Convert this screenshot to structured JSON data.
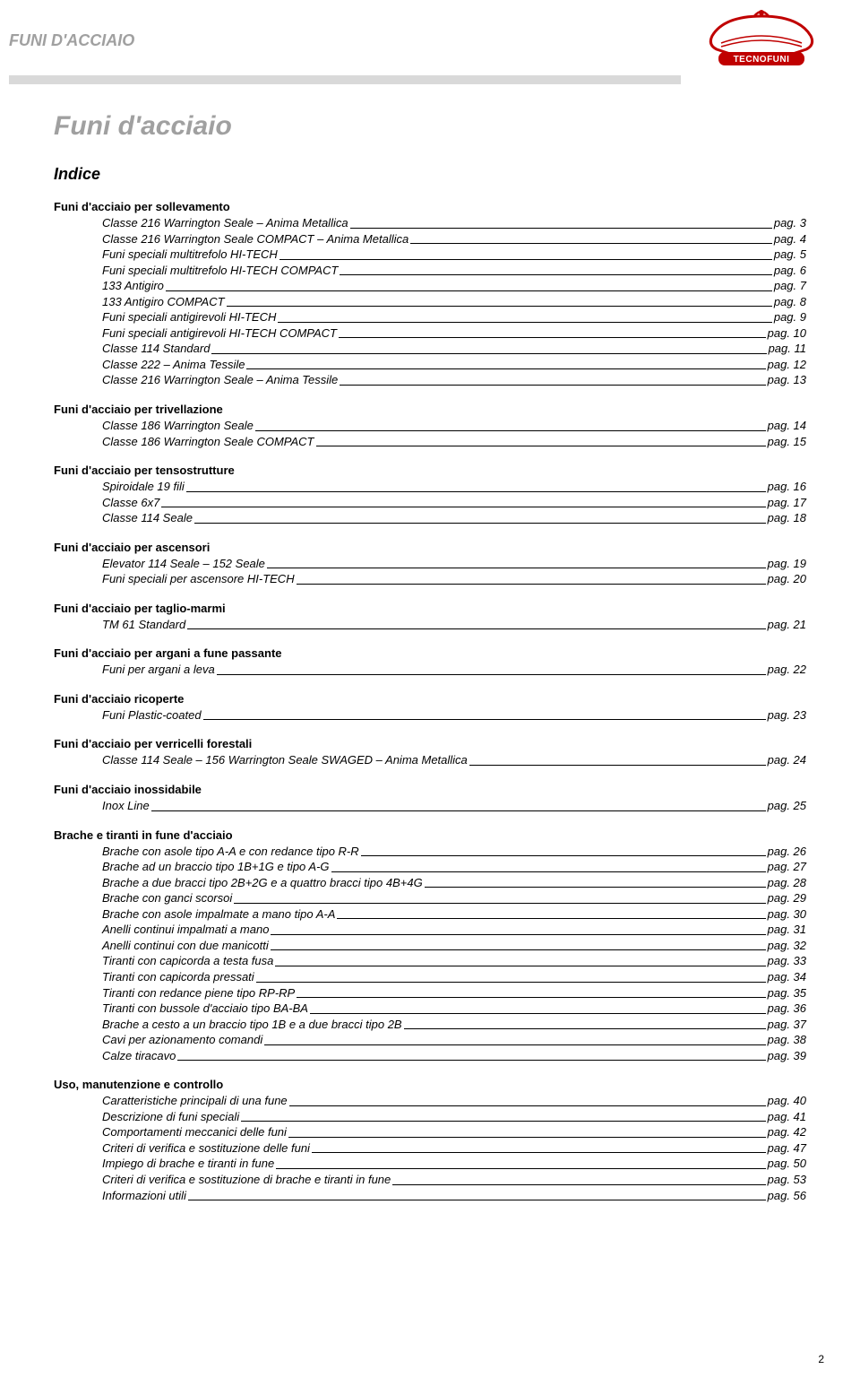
{
  "header": {
    "title": "FUNI D'ACCIAIO",
    "logo_name": "TECNOFUNI",
    "logo_color": "#c00000",
    "logo_fill": "#ffffff"
  },
  "main_title": "Funi d'acciaio",
  "index_title": "Indice",
  "footer_page": "2",
  "sections": [
    {
      "title": "Funi d'acciaio per sollevamento",
      "items": [
        {
          "label": "Classe 216 Warrington Seale – Anima Metallica",
          "page": "pag. 3"
        },
        {
          "label": "Classe 216 Warrington Seale COMPACT – Anima Metallica",
          "page": "pag. 4"
        },
        {
          "label": "Funi speciali multitrefolo HI-TECH",
          "page": "pag. 5"
        },
        {
          "label": "Funi speciali multitrefolo HI-TECH COMPACT",
          "page": "pag. 6"
        },
        {
          "label": "133 Antigiro",
          "page": "pag. 7"
        },
        {
          "label": "133 Antigiro COMPACT",
          "page": "pag. 8"
        },
        {
          "label": "Funi speciali antigirevoli HI-TECH",
          "page": "pag. 9"
        },
        {
          "label": "Funi speciali antigirevoli HI-TECH COMPACT",
          "page": "pag. 10"
        },
        {
          "label": "Classe 114 Standard",
          "page": "pag. 11"
        },
        {
          "label": "Classe 222 – Anima Tessile",
          "page": "pag. 12"
        },
        {
          "label": "Classe 216 Warrington Seale – Anima Tessile",
          "page": "pag. 13"
        }
      ]
    },
    {
      "title": "Funi d'acciaio per trivellazione",
      "items": [
        {
          "label": "Classe 186 Warrington Seale",
          "page": "pag. 14"
        },
        {
          "label": "Classe 186 Warrington Seale COMPACT",
          "page": "pag. 15"
        }
      ]
    },
    {
      "title": "Funi d'acciaio per tensostrutture",
      "items": [
        {
          "label": "Spiroidale 19 fili",
          "page": "pag. 16"
        },
        {
          "label": "Classe 6x7",
          "page": "pag. 17"
        },
        {
          "label": "Classe 114 Seale",
          "page": "pag. 18"
        }
      ]
    },
    {
      "title": "Funi d'acciaio per ascensori",
      "items": [
        {
          "label": "Elevator 114 Seale – 152 Seale",
          "page": "pag. 19"
        },
        {
          "label": "Funi speciali per ascensore HI-TECH",
          "page": "pag. 20"
        }
      ]
    },
    {
      "title": "Funi d'acciaio per taglio-marmi",
      "items": [
        {
          "label": "TM 61 Standard",
          "page": "pag. 21"
        }
      ]
    },
    {
      "title": "Funi d'acciaio per argani a fune passante",
      "items": [
        {
          "label": "Funi per argani a leva",
          "page": "pag. 22"
        }
      ]
    },
    {
      "title": "Funi d'acciaio ricoperte",
      "items": [
        {
          "label": "Funi Plastic-coated",
          "page": "pag. 23"
        }
      ]
    },
    {
      "title": "Funi d'acciaio per verricelli forestali",
      "items": [
        {
          "label": "Classe 114 Seale – 156 Warrington Seale SWAGED – Anima Metallica",
          "page": "pag. 24"
        }
      ]
    },
    {
      "title": "Funi d'acciaio inossidabile",
      "items": [
        {
          "label": "Inox Line",
          "page": "pag. 25"
        }
      ]
    },
    {
      "title": "Brache e tiranti in fune d'acciaio",
      "items": [
        {
          "label": "Brache con asole tipo A-A e con redance tipo R-R",
          "page": "pag. 26"
        },
        {
          "label": "Brache ad un braccio tipo 1B+1G e tipo A-G",
          "page": "pag. 27"
        },
        {
          "label": "Brache a due bracci tipo 2B+2G e a quattro bracci tipo 4B+4G",
          "page": "pag. 28"
        },
        {
          "label": "Brache con ganci scorsoi",
          "page": "pag. 29"
        },
        {
          "label": "Brache con asole impalmate a mano tipo A-A",
          "page": "pag. 30"
        },
        {
          "label": "Anelli continui impalmati a mano",
          "page": "pag. 31"
        },
        {
          "label": "Anelli continui con due manicotti",
          "page": "pag. 32"
        },
        {
          "label": "Tiranti con capicorda a testa fusa",
          "page": "pag. 33"
        },
        {
          "label": "Tiranti con capicorda pressati",
          "page": "pag. 34"
        },
        {
          "label": "Tiranti con redance piene tipo RP-RP",
          "page": "pag. 35"
        },
        {
          "label": "Tiranti con bussole d'acciaio tipo BA-BA",
          "page": "pag. 36"
        },
        {
          "label": "Brache a cesto a un braccio tipo 1B e a due bracci tipo 2B",
          "page": "pag. 37"
        },
        {
          "label": "Cavi per azionamento comandi",
          "page": "pag. 38"
        },
        {
          "label": "Calze tiracavo",
          "page": "pag. 39"
        }
      ]
    },
    {
      "title": "Uso, manutenzione e controllo",
      "items": [
        {
          "label": "Caratteristiche principali di una fune",
          "page": "pag. 40"
        },
        {
          "label": "Descrizione di funi speciali",
          "page": "pag. 41"
        },
        {
          "label": "Comportamenti meccanici delle funi",
          "page": "pag. 42"
        },
        {
          "label": "Criteri di verifica e sostituzione delle funi",
          "page": "pag. 47"
        },
        {
          "label": "Impiego di brache e tiranti in fune",
          "page": "pag. 50"
        },
        {
          "label": "Criteri di verifica e sostituzione di brache e tiranti in fune",
          "page": "pag. 53"
        },
        {
          "label": "Informazioni utili",
          "page": "pag. 56"
        }
      ]
    }
  ]
}
